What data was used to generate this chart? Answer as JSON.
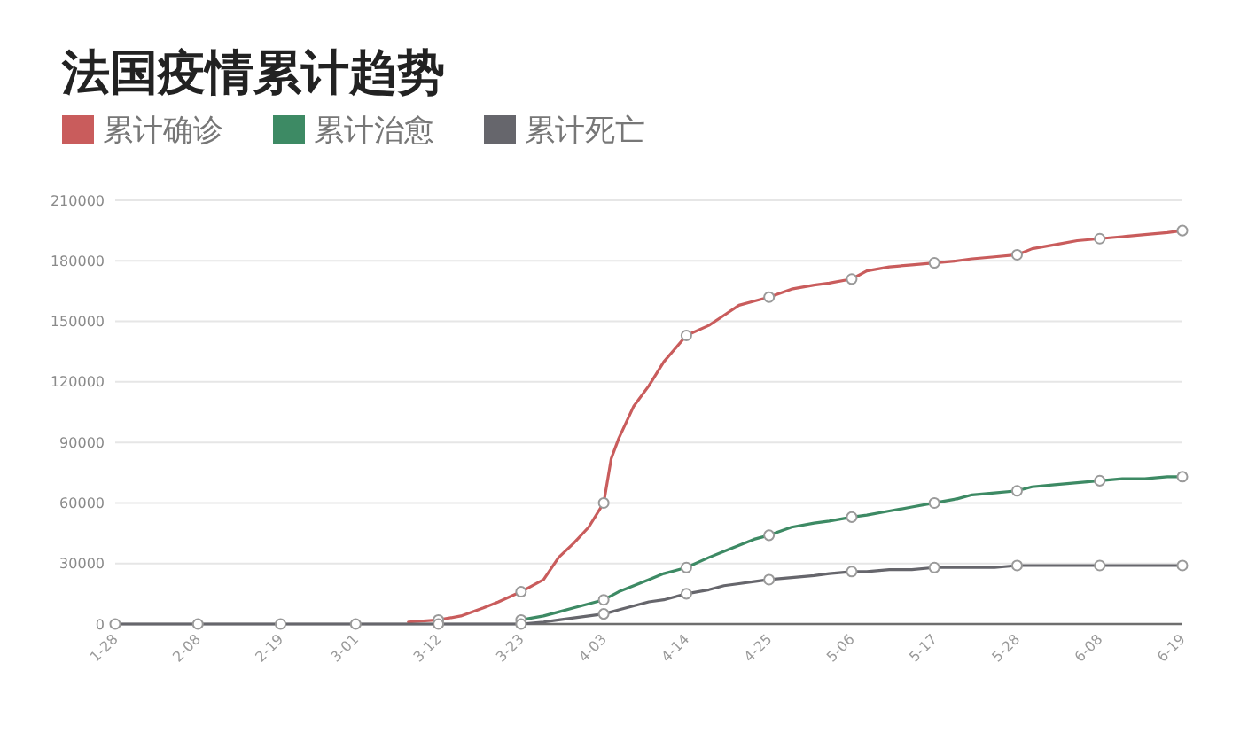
{
  "chart_data": {
    "type": "line",
    "title": "法国疫情累计趋势",
    "x": [
      "--01-28",
      "--02-08",
      "--02-19",
      "--03-01",
      "--03-05",
      "--03-08",
      "--03-12",
      "--03-15",
      "--03-18",
      "--03-20",
      "--03-23",
      "--03-26",
      "--03-28",
      "--03-30",
      "--04-01",
      "--04-03",
      "--04-04",
      "--04-05",
      "--04-07",
      "--04-09",
      "--04-11",
      "--04-14",
      "--04-17",
      "--04-19",
      "--04-21",
      "--04-23",
      "--04-25",
      "--04-28",
      "--05-01",
      "--05-03",
      "--05-06",
      "--05-08",
      "--05-11",
      "--05-14",
      "--05-17",
      "--05-20",
      "--05-22",
      "--05-25",
      "--05-28",
      "--05-30",
      "--06-02",
      "--06-05",
      "--06-08",
      "--06-11",
      "--06-14",
      "--06-17",
      "--06-19"
    ],
    "series": [
      {
        "name": "累计确诊",
        "color": "#c95c5c",
        "values": [
          null,
          null,
          null,
          null,
          null,
          1000,
          2000,
          4000,
          8000,
          11000,
          16000,
          22000,
          33000,
          40000,
          48000,
          60000,
          82000,
          92000,
          108000,
          118000,
          130000,
          143000,
          148000,
          153000,
          158000,
          160000,
          162000,
          166000,
          168000,
          169000,
          171000,
          175000,
          177000,
          178000,
          179000,
          180000,
          181000,
          182000,
          183000,
          186000,
          188000,
          190000,
          191000,
          192000,
          193000,
          194000,
          195000
        ]
      },
      {
        "name": "累计治愈",
        "color": "#3d8a64",
        "values": [
          null,
          null,
          null,
          null,
          null,
          null,
          null,
          null,
          null,
          null,
          2000,
          4000,
          6000,
          8000,
          10000,
          12000,
          14000,
          16000,
          19000,
          22000,
          25000,
          28000,
          33000,
          36000,
          39000,
          42000,
          44000,
          48000,
          50000,
          51000,
          53000,
          54000,
          56000,
          58000,
          60000,
          62000,
          64000,
          65000,
          66000,
          68000,
          69000,
          70000,
          71000,
          72000,
          72000,
          73000,
          73000
        ]
      },
      {
        "name": "累计死亡",
        "color": "#66666c",
        "values": [
          0,
          0,
          0,
          0,
          0,
          0,
          0,
          0,
          0,
          0,
          0,
          1000,
          2000,
          3000,
          4000,
          5000,
          6000,
          7000,
          9000,
          11000,
          12000,
          15000,
          17000,
          19000,
          20000,
          21000,
          22000,
          23000,
          24000,
          25000,
          26000,
          26000,
          27000,
          27000,
          28000,
          28000,
          28000,
          28000,
          29000,
          29000,
          29000,
          29000,
          29000,
          29000,
          29000,
          29000,
          29000
        ]
      },
      {
        "type": "scatter",
        "marker": "circle",
        "color": "#ffffff",
        "x": [
          "--03-12",
          "--03-23",
          "--04-03",
          "--04-14",
          "--04-25",
          "--05-06",
          "--05-17",
          "--05-28",
          "--06-08",
          "--06-19"
        ],
        "values": [
          2000,
          16000,
          60000,
          143000,
          162000,
          171000,
          179000,
          183000,
          191000,
          195000
        ]
      },
      {
        "type": "scatter",
        "marker": "circle",
        "color": "#ffffff",
        "x": [
          "--03-23",
          "--04-03",
          "--04-14",
          "--04-25",
          "--05-06",
          "--05-17",
          "--05-28",
          "--06-08",
          "--06-19"
        ],
        "values": [
          2000,
          12000,
          28000,
          44000,
          53000,
          60000,
          66000,
          71000,
          73000
        ]
      },
      {
        "type": "scatter",
        "marker": "circle",
        "color": "#ffffff",
        "x": [
          "--01-28",
          "--02-08",
          "--02-19",
          "--03-01",
          "--03-12",
          "--03-23",
          "--04-03",
          "--04-14",
          "--04-25",
          "--05-06",
          "--05-17",
          "--05-28",
          "--06-08",
          "--06-19"
        ],
        "values": [
          0,
          0,
          0,
          0,
          0,
          0,
          5000,
          15000,
          22000,
          26000,
          28000,
          29000,
          29000,
          29000
        ]
      }
    ],
    "xlim": [
      "--01-28",
      "--06-19"
    ],
    "xticks": [
      {
        "value": "--01-28",
        "label": "1-28"
      },
      {
        "value": "--02-08",
        "label": "2-08"
      },
      {
        "value": "--02-19",
        "label": "2-19"
      },
      {
        "value": "--03-01",
        "label": "3-01"
      },
      {
        "value": "--03-12",
        "label": "3-12"
      },
      {
        "value": "--03-23",
        "label": "3-23"
      },
      {
        "value": "--04-03",
        "label": "4-03"
      },
      {
        "value": "--04-14",
        "label": "4-14"
      },
      {
        "value": "--04-25",
        "label": "4-25"
      },
      {
        "value": "--05-06",
        "label": "5-06"
      },
      {
        "value": "--05-17",
        "label": "5-17"
      },
      {
        "value": "--05-28",
        "label": "5-28"
      },
      {
        "value": "--06-08",
        "label": "6-08"
      },
      {
        "value": "--06-19",
        "label": "6-19"
      }
    ],
    "ylim": [
      0,
      210000
    ],
    "yticks": [
      0,
      30000,
      60000,
      90000,
      120000,
      150000,
      180000,
      210000
    ],
    "grid": "y",
    "legend": "top left",
    "line_style": "solid"
  }
}
